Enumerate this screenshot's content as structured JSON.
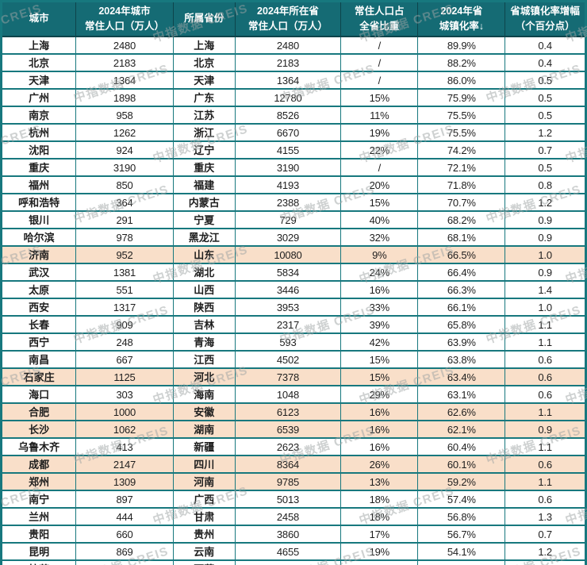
{
  "watermark": {
    "text": "中指数据 CREIS"
  },
  "colors": {
    "header_bg": "#156b74",
    "grid_line": "#17787e",
    "header_divider": "#0d444b",
    "highlight_bg": "#f9dfc9",
    "body_text": "#1e1e1e",
    "header_text": "#ffffff",
    "watermark_gray": "#9ea3a3"
  },
  "chart_data": {
    "type": "table",
    "columns": [
      "城市",
      "2024年城市常住人口（万人）",
      "所属省份",
      "2024年所在省常住人口（万人）",
      "常住人口占全省比重",
      "2024年省城镇化率↓",
      "省城镇化率增幅（个百分点）"
    ],
    "header_lines": [
      [
        "城市"
      ],
      [
        "2024年城市",
        "常住人口（万人）"
      ],
      [
        "所属省份"
      ],
      [
        "2024年所在省",
        "常住人口（万人）"
      ],
      [
        "常住人口占",
        "全省比重"
      ],
      [
        "2024年省",
        "城镇化率↓"
      ],
      [
        "省城镇化率增幅",
        "（个百分点）"
      ]
    ],
    "column_widths_pct": [
      12.8,
      16.6,
      10.6,
      18.1,
      13.2,
      14.9,
      13.8
    ],
    "rows": [
      [
        "上海",
        "2480",
        "上海",
        "2480",
        "/",
        "89.9%",
        "0.4"
      ],
      [
        "北京",
        "2183",
        "北京",
        "2183",
        "/",
        "88.2%",
        "0.4"
      ],
      [
        "天津",
        "1364",
        "天津",
        "1364",
        "/",
        "86.0%",
        "0.5"
      ],
      [
        "广州",
        "1898",
        "广东",
        "12780",
        "15%",
        "75.9%",
        "0.5"
      ],
      [
        "南京",
        "958",
        "江苏",
        "8526",
        "11%",
        "75.5%",
        "0.5"
      ],
      [
        "杭州",
        "1262",
        "浙江",
        "6670",
        "19%",
        "75.5%",
        "1.2"
      ],
      [
        "沈阳",
        "924",
        "辽宁",
        "4155",
        "22%",
        "74.2%",
        "0.7"
      ],
      [
        "重庆",
        "3190",
        "重庆",
        "3190",
        "/",
        "72.1%",
        "0.5"
      ],
      [
        "福州",
        "850",
        "福建",
        "4193",
        "20%",
        "71.8%",
        "0.8"
      ],
      [
        "呼和浩特",
        "364",
        "内蒙古",
        "2388",
        "15%",
        "70.7%",
        "1.2"
      ],
      [
        "银川",
        "291",
        "宁夏",
        "729",
        "40%",
        "68.2%",
        "0.9"
      ],
      [
        "哈尔滨",
        "978",
        "黑龙江",
        "3029",
        "32%",
        "68.1%",
        "0.9"
      ],
      [
        "济南",
        "952",
        "山东",
        "10080",
        "9%",
        "66.5%",
        "1.0"
      ],
      [
        "武汉",
        "1381",
        "湖北",
        "5834",
        "24%",
        "66.4%",
        "0.9"
      ],
      [
        "太原",
        "551",
        "山西",
        "3446",
        "16%",
        "66.3%",
        "1.4"
      ],
      [
        "西安",
        "1317",
        "陕西",
        "3953",
        "33%",
        "66.1%",
        "1.0"
      ],
      [
        "长春",
        "909",
        "吉林",
        "2317",
        "39%",
        "65.8%",
        "1.1"
      ],
      [
        "西宁",
        "248",
        "青海",
        "593",
        "42%",
        "63.9%",
        "1.1"
      ],
      [
        "南昌",
        "667",
        "江西",
        "4502",
        "15%",
        "63.8%",
        "0.6"
      ],
      [
        "石家庄",
        "1125",
        "河北",
        "7378",
        "15%",
        "63.4%",
        "0.6"
      ],
      [
        "海口",
        "303",
        "海南",
        "1048",
        "29%",
        "63.1%",
        "0.6"
      ],
      [
        "合肥",
        "1000",
        "安徽",
        "6123",
        "16%",
        "62.6%",
        "1.1"
      ],
      [
        "长沙",
        "1062",
        "湖南",
        "6539",
        "16%",
        "62.1%",
        "0.9"
      ],
      [
        "乌鲁木齐",
        "413",
        "新疆",
        "2623",
        "16%",
        "60.4%",
        "1.1"
      ],
      [
        "成都",
        "2147",
        "四川",
        "8364",
        "26%",
        "60.1%",
        "0.6"
      ],
      [
        "郑州",
        "1309",
        "河南",
        "9785",
        "13%",
        "59.2%",
        "1.1"
      ],
      [
        "南宁",
        "897",
        "广西",
        "5013",
        "18%",
        "57.4%",
        "0.6"
      ],
      [
        "兰州",
        "444",
        "甘肃",
        "2458",
        "18%",
        "56.8%",
        "1.3"
      ],
      [
        "贵阳",
        "660",
        "贵州",
        "3860",
        "17%",
        "56.7%",
        "0.7"
      ],
      [
        "昆明",
        "869",
        "云南",
        "4655",
        "19%",
        "54.1%",
        "1.2"
      ],
      [
        "拉萨",
        "88",
        "西藏",
        "370",
        "24%",
        "39.7%",
        "0.8"
      ]
    ],
    "highlighted_rows": [
      12,
      19,
      21,
      22,
      24,
      25
    ],
    "sort_indicator_column": "2024年省城镇化率↓",
    "sort_direction": "descending"
  }
}
